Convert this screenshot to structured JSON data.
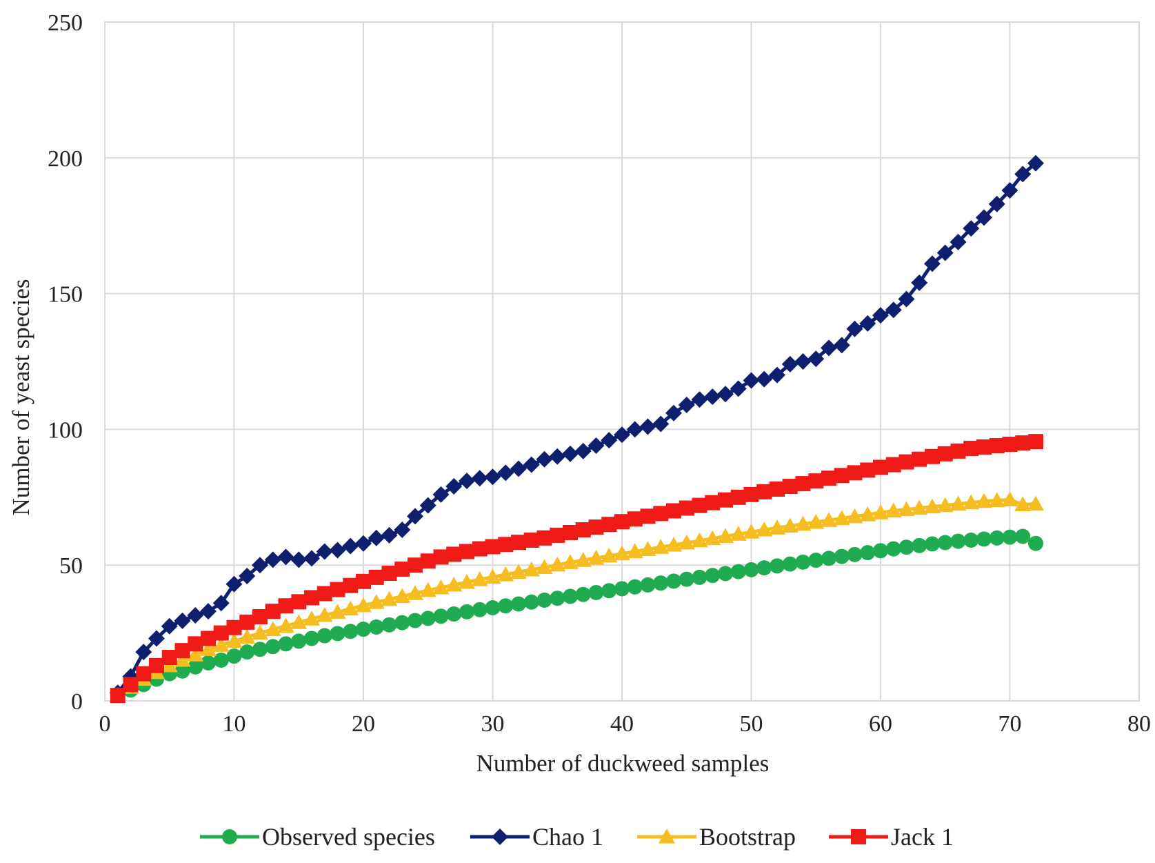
{
  "chart_data": {
    "type": "line",
    "title": "",
    "xlabel": "Number of duckweed samples",
    "ylabel": "Number of yeast species",
    "xlim": [
      0,
      80
    ],
    "ylim": [
      0,
      250
    ],
    "xticks": [
      0,
      10,
      20,
      30,
      40,
      50,
      60,
      70,
      80
    ],
    "yticks": [
      0,
      50,
      100,
      150,
      200,
      250
    ],
    "grid": true,
    "legend_position": "bottom",
    "x": [
      1,
      2,
      3,
      4,
      5,
      6,
      7,
      8,
      9,
      10,
      11,
      12,
      13,
      14,
      15,
      16,
      17,
      18,
      19,
      20,
      21,
      22,
      23,
      24,
      25,
      26,
      27,
      28,
      29,
      30,
      31,
      32,
      33,
      34,
      35,
      36,
      37,
      38,
      39,
      40,
      41,
      42,
      43,
      44,
      45,
      46,
      47,
      48,
      49,
      50,
      51,
      52,
      53,
      54,
      55,
      56,
      57,
      58,
      59,
      60,
      61,
      62,
      63,
      64,
      65,
      66,
      67,
      68,
      69,
      70,
      71,
      72
    ],
    "series": [
      {
        "name": "Observed species",
        "color": "#1fab4f",
        "marker": "circle",
        "values": [
          2,
          4,
          6,
          8,
          10,
          11,
          12.5,
          14,
          15,
          16.5,
          18,
          19,
          20,
          21,
          22,
          23,
          24,
          24.8,
          25.6,
          26.4,
          27.2,
          28,
          28.8,
          29.6,
          30.4,
          31.2,
          32,
          32.8,
          33.6,
          34.3,
          35,
          35.7,
          36.4,
          37.1,
          37.8,
          38.5,
          39.2,
          39.9,
          40.6,
          41.3,
          42,
          42.7,
          43.4,
          44.1,
          44.8,
          45.5,
          46.2,
          46.9,
          47.6,
          48.3,
          49,
          49.7,
          50.4,
          51.1,
          51.8,
          52.5,
          53.2,
          53.9,
          54.6,
          55.3,
          56,
          56.6,
          57.2,
          57.8,
          58.3,
          58.8,
          59.2,
          59.6,
          60,
          60.3,
          60.6,
          58
        ]
      },
      {
        "name": "Chao 1",
        "color": "#0f1f6e",
        "marker": "diamond",
        "values": [
          3,
          9,
          18,
          23,
          27.5,
          29.5,
          31.5,
          33,
          36,
          43,
          46,
          50,
          52,
          53,
          52,
          52.5,
          55,
          55.5,
          57,
          58,
          60,
          61,
          63,
          68,
          72,
          76,
          79,
          81,
          82,
          82.5,
          84,
          85.5,
          87,
          89,
          90,
          91,
          92,
          94,
          96,
          98,
          100,
          101,
          102,
          106,
          109,
          111,
          112,
          113,
          115,
          118,
          118.5,
          120,
          124,
          125,
          126,
          130,
          131,
          137,
          139,
          142,
          144,
          148,
          154,
          161,
          165,
          169,
          174,
          178,
          183,
          188,
          194,
          198
        ]
      },
      {
        "name": "Bootstrap",
        "color": "#f5bd1f",
        "marker": "triangle",
        "values": [
          2,
          5,
          8,
          10.5,
          13,
          15,
          17,
          19,
          20.5,
          22,
          23.5,
          25,
          26.3,
          27.6,
          28.9,
          30.2,
          31.5,
          32.7,
          33.9,
          35.1,
          36.3,
          37.4,
          38.5,
          39.6,
          40.7,
          41.7,
          42.7,
          43.7,
          44.7,
          45.6,
          46.5,
          47.4,
          48.3,
          49.2,
          50.1,
          51,
          51.8,
          52.6,
          53.4,
          54.2,
          55,
          55.8,
          56.6,
          57.4,
          58.2,
          59,
          59.8,
          60.6,
          61.4,
          62.2,
          63,
          63.7,
          64.4,
          65.1,
          65.8,
          66.5,
          67.2,
          67.9,
          68.6,
          69.3,
          70,
          70.5,
          71,
          71.5,
          72,
          72.5,
          73,
          73.5,
          73.8,
          74.1,
          72.3,
          72.5
        ]
      },
      {
        "name": "Jack 1",
        "color": "#f01a16",
        "marker": "square",
        "values": [
          2,
          6,
          10,
          13,
          16,
          18.5,
          21,
          23,
          25,
          27,
          29,
          31,
          33,
          35,
          36.5,
          38,
          39.5,
          41,
          42.5,
          44,
          45.5,
          47,
          48.5,
          50,
          51.5,
          53,
          54,
          55,
          56,
          56.8,
          57.6,
          58.4,
          59.2,
          60,
          61,
          62,
          63,
          64,
          65,
          66,
          67,
          68,
          69,
          70,
          71,
          72,
          73,
          74,
          75,
          76,
          77,
          78,
          79,
          80,
          81,
          82,
          83,
          84,
          85,
          86,
          87,
          88,
          89,
          90,
          91,
          92,
          93,
          93.5,
          94,
          94.5,
          95,
          95.5
        ]
      }
    ]
  }
}
